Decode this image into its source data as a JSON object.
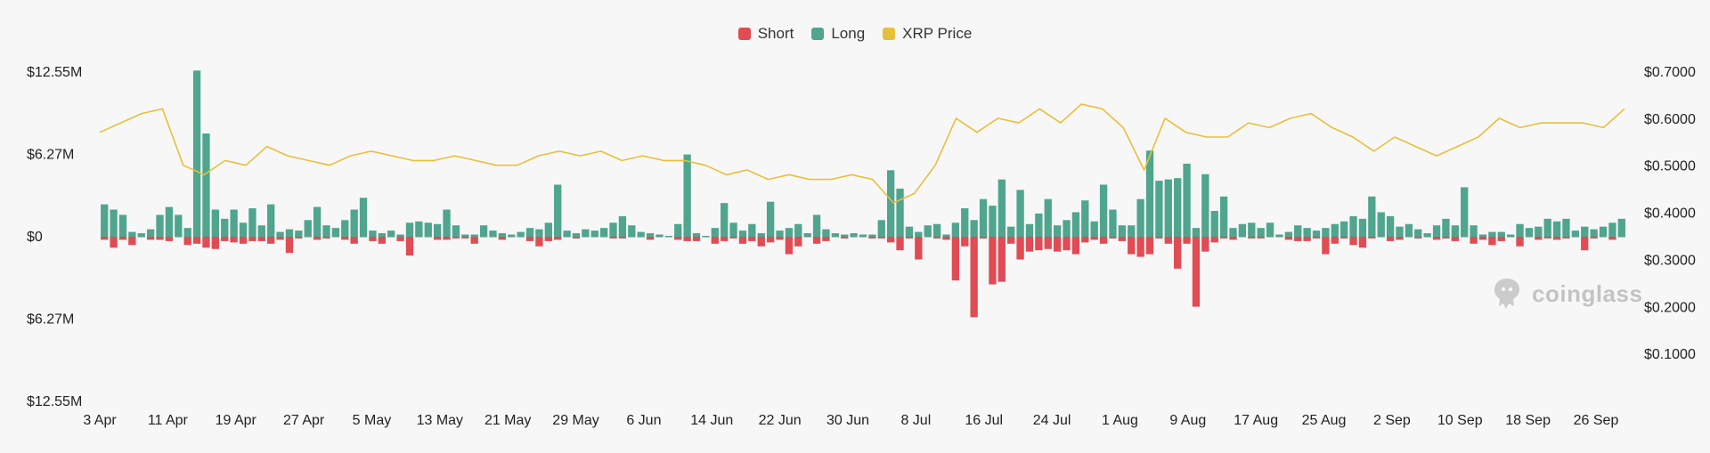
{
  "colors": {
    "short": "#e04b54",
    "long": "#4fa58e",
    "price": "#e8bf3c",
    "background": "#f7f7f7"
  },
  "watermark": {
    "text": "coinglass",
    "icon": "coinglass-logo-icon"
  },
  "chart_data": {
    "type": "bar",
    "title": "",
    "legend": {
      "position": "top-center",
      "items": [
        "Short",
        "Long",
        "XRP Price"
      ]
    },
    "series": [
      {
        "name": "Short",
        "type": "bar",
        "color": "#e04b54"
      },
      {
        "name": "Long",
        "type": "bar",
        "color": "#4fa58e"
      },
      {
        "name": "XRP Price",
        "type": "line",
        "color": "#e8bf3c"
      }
    ],
    "x_ticks": [
      "3 Apr",
      "11 Apr",
      "19 Apr",
      "27 Apr",
      "5 May",
      "13 May",
      "21 May",
      "29 May",
      "6 Jun",
      "14 Jun",
      "22 Jun",
      "30 Jun",
      "8 Jul",
      "16 Jul",
      "24 Jul",
      "1 Aug",
      "9 Aug",
      "17 Aug",
      "25 Aug",
      "2 Sep",
      "10 Sep",
      "18 Sep",
      "26 Sep"
    ],
    "y_left": {
      "ylim": [
        -12.55,
        12.55
      ],
      "ticks": [
        12.55,
        6.27,
        0,
        -6.27,
        -12.55
      ],
      "labels": [
        "$12.55M",
        "$6.27M",
        "$0",
        "$6.27M",
        "$12.55M"
      ]
    },
    "y_right": {
      "ylim": [
        0.0,
        0.7
      ],
      "ticks": [
        0.7,
        0.6,
        0.5,
        0.4,
        0.3,
        0.2,
        0.1
      ],
      "labels": [
        "$0.7000",
        "$0.6000",
        "$0.5000",
        "$0.4000",
        "$0.3000",
        "$0.2000",
        "$0.1000"
      ]
    },
    "long_usd_millions": [
      2.4,
      2.0,
      1.6,
      0.3,
      0.2,
      0.5,
      1.6,
      2.2,
      1.6,
      0.6,
      12.6,
      7.8,
      2.0,
      1.3,
      2.0,
      1.0,
      2.1,
      0.8,
      2.4,
      0.3,
      0.5,
      0.4,
      1.2,
      2.2,
      0.8,
      0.6,
      1.2,
      2.0,
      2.9,
      0.4,
      0.2,
      0.4,
      0.1,
      1.0,
      1.1,
      1.0,
      0.9,
      2.0,
      0.8,
      0.1,
      0.1,
      0.8,
      0.4,
      0.2,
      0.1,
      0.3,
      0.6,
      0.5,
      1.0,
      3.9,
      0.4,
      0.2,
      0.5,
      0.4,
      0.6,
      1.0,
      1.5,
      0.8,
      0.3,
      0.2,
      0.1,
      0.0,
      0.9,
      6.2,
      0.2,
      0.0,
      0.6,
      2.5,
      1.0,
      0.4,
      0.9,
      0.2,
      2.6,
      0.4,
      0.6,
      0.9,
      0.2,
      1.6,
      0.5,
      0.2,
      0.1,
      0.2,
      0.1,
      0.1,
      1.2,
      5.0,
      3.6,
      0.7,
      0.3,
      0.8,
      0.9,
      0.1,
      1.0,
      2.1,
      1.2,
      2.8,
      2.3,
      4.3,
      0.7,
      3.5,
      0.9,
      1.7,
      2.8,
      0.8,
      1.2,
      1.8,
      2.7,
      1.1,
      3.9,
      2.0,
      0.8,
      0.8,
      2.8,
      6.5,
      4.2,
      4.3,
      4.4,
      5.5,
      0.6,
      4.7,
      1.9,
      3.0,
      0.6,
      0.9,
      1.0,
      0.6,
      1.0,
      0.1,
      0.3,
      0.8,
      0.6,
      0.4,
      0.6,
      0.9,
      1.1,
      1.5,
      1.3,
      3.0,
      1.8,
      1.5,
      0.7,
      0.9,
      0.5,
      0.2,
      0.8,
      1.3,
      0.8,
      3.7,
      0.8,
      0.1,
      0.3,
      0.3,
      0.1,
      0.9,
      0.6,
      0.7,
      1.3,
      1.1,
      1.3,
      0.4,
      0.7,
      0.5,
      0.7,
      1.0,
      1.3
    ],
    "short_usd_millions": [
      0.3,
      0.9,
      0.3,
      0.7,
      0.1,
      0.3,
      0.3,
      0.4,
      0.1,
      0.7,
      0.6,
      0.9,
      1.0,
      0.4,
      0.5,
      0.6,
      0.4,
      0.4,
      0.6,
      0.3,
      1.3,
      0.2,
      0.1,
      0.3,
      0.2,
      0.1,
      0.3,
      0.6,
      0.1,
      0.4,
      0.6,
      0.1,
      0.4,
      1.5,
      0.1,
      0.1,
      0.3,
      0.3,
      0.2,
      0.2,
      0.6,
      0.1,
      0.1,
      0.3,
      0.1,
      0.1,
      0.4,
      0.8,
      0.4,
      0.3,
      0.1,
      0.2,
      0.1,
      0.1,
      0.1,
      0.2,
      0.2,
      0.1,
      0.1,
      0.3,
      0.1,
      0.1,
      0.3,
      0.4,
      0.4,
      0.1,
      0.6,
      0.4,
      0.2,
      0.6,
      0.4,
      0.8,
      0.5,
      0.3,
      1.4,
      0.8,
      0.1,
      0.6,
      0.4,
      0.1,
      0.2,
      0.1,
      0.1,
      0.2,
      0.2,
      0.5,
      1.1,
      0.2,
      1.8,
      0.1,
      0.2,
      0.3,
      3.4,
      0.8,
      6.2,
      0.2,
      3.7,
      3.5,
      0.6,
      1.8,
      1.2,
      1.1,
      1.0,
      1.2,
      1.1,
      1.4,
      0.5,
      0.3,
      0.6,
      0.2,
      0.4,
      1.4,
      1.6,
      1.4,
      0.2,
      0.6,
      2.5,
      0.6,
      5.4,
      1.2,
      0.5,
      0.2,
      0.3,
      0.1,
      0.2,
      0.2,
      0.1,
      0.1,
      0.3,
      0.4,
      0.4,
      0.2,
      1.4,
      0.6,
      0.2,
      0.7,
      0.9,
      0.2,
      0.1,
      0.4,
      0.3,
      0.1,
      0.2,
      0.1,
      0.3,
      0.2,
      0.4,
      0.1,
      0.6,
      0.3,
      0.7,
      0.4,
      0.1,
      0.8,
      0.1,
      0.3,
      0.2,
      0.3,
      0.2,
      0.1,
      1.1,
      0.2,
      0.1,
      0.3,
      0.1,
      0.2,
      0.9,
      0.4
    ],
    "xrp_price_usd": [
      0.57,
      0.59,
      0.61,
      0.62,
      0.5,
      0.48,
      0.51,
      0.5,
      0.54,
      0.52,
      0.51,
      0.5,
      0.52,
      0.53,
      0.52,
      0.51,
      0.51,
      0.52,
      0.51,
      0.5,
      0.5,
      0.52,
      0.53,
      0.52,
      0.53,
      0.51,
      0.52,
      0.51,
      0.51,
      0.5,
      0.48,
      0.49,
      0.47,
      0.48,
      0.47,
      0.47,
      0.48,
      0.47,
      0.42,
      0.44,
      0.5,
      0.6,
      0.57,
      0.6,
      0.59,
      0.62,
      0.59,
      0.63,
      0.62,
      0.58,
      0.49,
      0.6,
      0.57,
      0.56,
      0.56,
      0.59,
      0.58,
      0.6,
      0.61,
      0.58,
      0.56,
      0.53,
      0.56,
      0.54,
      0.52,
      0.54,
      0.56,
      0.6,
      0.58,
      0.59,
      0.59,
      0.59,
      0.58,
      0.62
    ]
  }
}
